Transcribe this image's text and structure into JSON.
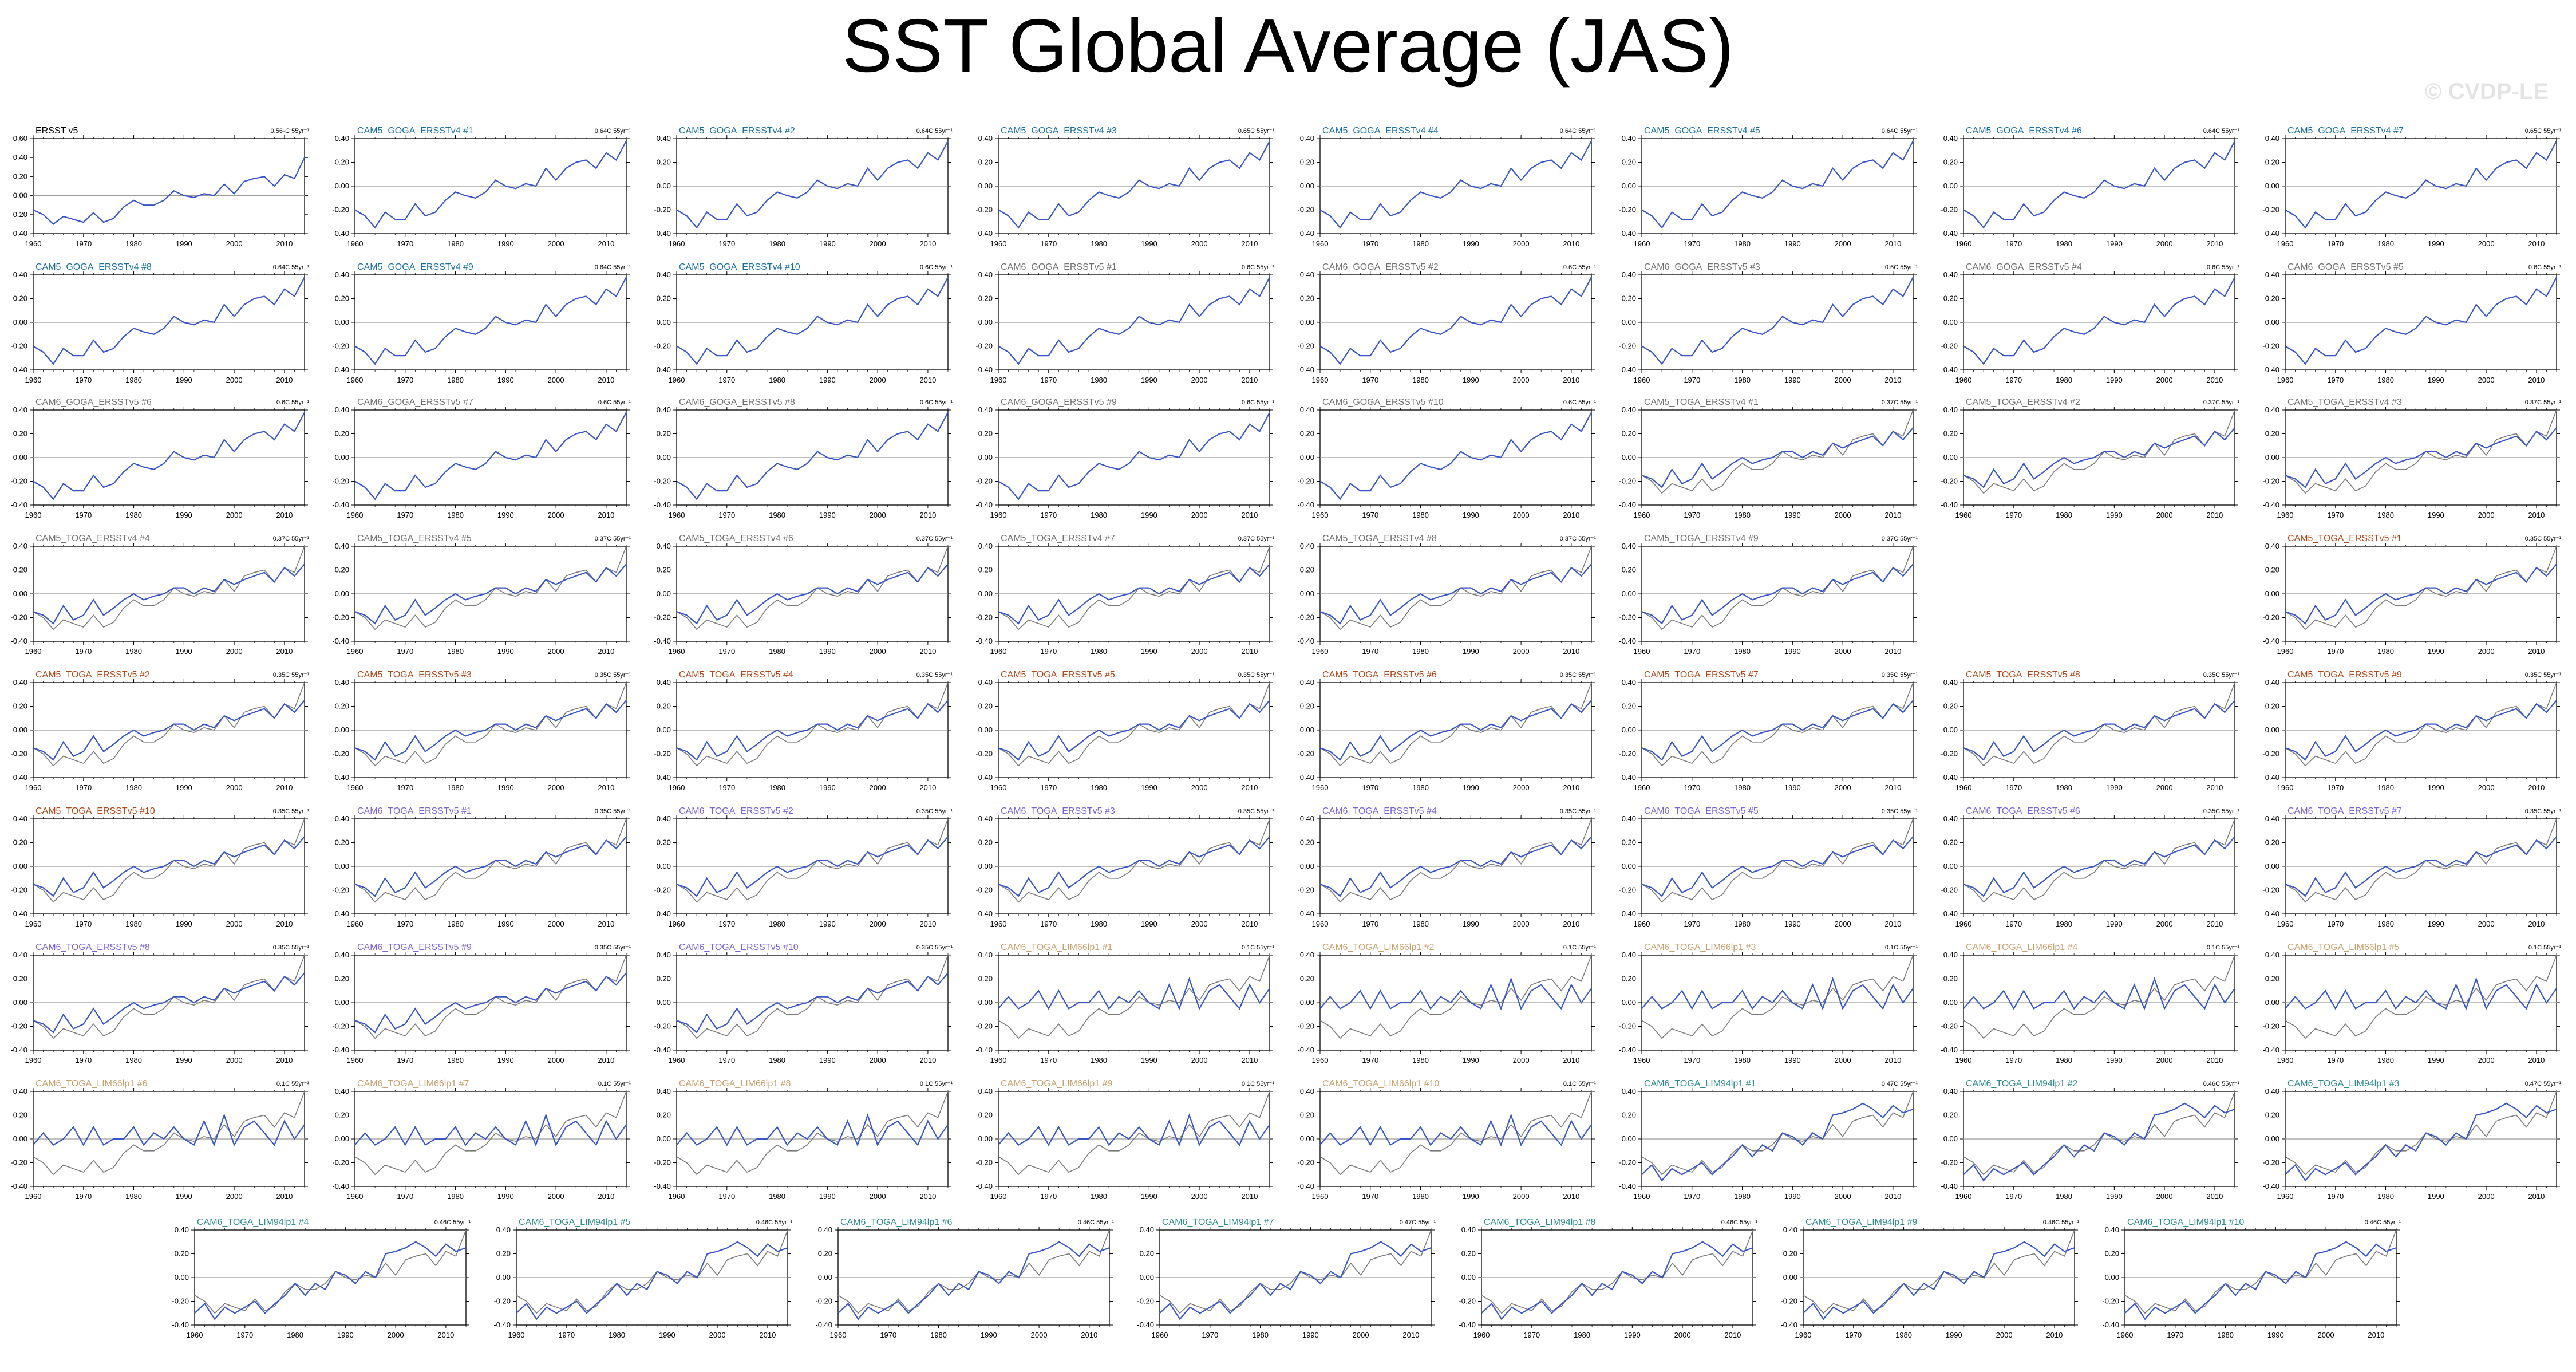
{
  "title": "SST Global Average (JAS)",
  "watermark": "© CVDP-LE",
  "colors": {
    "model_line": "#3a55c8",
    "obs_line": "#7a7a7a",
    "zero_line": "#9a9a9a",
    "obs_title": "#000000",
    "cam5_goga": "#1a6fa0",
    "cam6_goga": "#707070",
    "cam5_toga": "#b0471a",
    "cam6_toga": "#7b63d6",
    "lim66": "#c8a070",
    "lim94": "#2e8b8b"
  },
  "panels": [
    {
      "title": "ERSST v5",
      "trend": "0.56ᵒC 55yr⁻¹",
      "group": "obs"
    },
    {
      "title": "CAM5_GOGA_ERSSTv4 #1",
      "trend": "0.64C 55yr⁻¹",
      "group": "cam5_goga"
    },
    {
      "title": "CAM5_GOGA_ERSSTv4 #2",
      "trend": "0.64C 55yr⁻¹",
      "group": "cam5_goga"
    },
    {
      "title": "CAM5_GOGA_ERSSTv4 #3",
      "trend": "0.65C 55yr⁻¹",
      "group": "cam5_goga"
    },
    {
      "title": "CAM5_GOGA_ERSSTv4 #4",
      "trend": "0.64C 55yr⁻¹",
      "group": "cam5_goga"
    },
    {
      "title": "CAM5_GOGA_ERSSTv4 #5",
      "trend": "0.64C 55yr⁻¹",
      "group": "cam5_goga"
    },
    {
      "title": "CAM5_GOGA_ERSSTv4 #6",
      "trend": "0.64C 55yr⁻¹",
      "group": "cam5_goga"
    },
    {
      "title": "CAM5_GOGA_ERSSTv4 #7",
      "trend": "0.65C 55yr⁻¹",
      "group": "cam5_goga"
    },
    {
      "title": "CAM5_GOGA_ERSSTv4 #8",
      "trend": "0.64C 55yr⁻¹",
      "group": "cam5_goga"
    },
    {
      "title": "CAM5_GOGA_ERSSTv4 #9",
      "trend": "0.64C 55yr⁻¹",
      "group": "cam5_goga"
    },
    {
      "title": "CAM5_GOGA_ERSSTv4 #10",
      "trend": "0.6C 55yr⁻¹",
      "group": "cam5_goga"
    },
    {
      "title": "CAM6_GOGA_ERSSTv5 #1",
      "trend": "0.6C 55yr⁻¹",
      "group": "cam6_goga"
    },
    {
      "title": "CAM6_GOGA_ERSSTv5 #2",
      "trend": "0.6C 55yr⁻¹",
      "group": "cam6_goga"
    },
    {
      "title": "CAM6_GOGA_ERSSTv5 #3",
      "trend": "0.6C 55yr⁻¹",
      "group": "cam6_goga"
    },
    {
      "title": "CAM6_GOGA_ERSSTv5 #4",
      "trend": "0.6C 55yr⁻¹",
      "group": "cam6_goga"
    },
    {
      "title": "CAM6_GOGA_ERSSTv5 #5",
      "trend": "0.6C 55yr⁻¹",
      "group": "cam6_goga"
    },
    {
      "title": "CAM6_GOGA_ERSSTv5 #6",
      "trend": "0.6C 55yr⁻¹",
      "group": "cam6_goga"
    },
    {
      "title": "CAM6_GOGA_ERSSTv5 #7",
      "trend": "0.6C 55yr⁻¹",
      "group": "cam6_goga"
    },
    {
      "title": "CAM6_GOGA_ERSSTv5 #8",
      "trend": "0.6C 55yr⁻¹",
      "group": "cam6_goga"
    },
    {
      "title": "CAM6_GOGA_ERSSTv5 #9",
      "trend": "0.6C 55yr⁻¹",
      "group": "cam6_goga"
    },
    {
      "title": "CAM6_GOGA_ERSSTv5 #10",
      "trend": "0.6C 55yr⁻¹",
      "group": "cam6_goga"
    },
    {
      "title": "CAM5_TOGA_ERSSTv4 #1",
      "trend": "0.37C 55yr⁻¹",
      "group": "cam6_goga"
    },
    {
      "title": "CAM5_TOGA_ERSSTv4 #2",
      "trend": "0.37C 55yr⁻¹",
      "group": "cam6_goga"
    },
    {
      "title": "CAM5_TOGA_ERSSTv4 #3",
      "trend": "0.37C 55yr⁻¹",
      "group": "cam6_goga"
    },
    {
      "title": "CAM5_TOGA_ERSSTv4 #4",
      "trend": "0.37C 55yr⁻¹",
      "group": "cam6_goga"
    },
    {
      "title": "CAM5_TOGA_ERSSTv4 #5",
      "trend": "0.37C 55yr⁻¹",
      "group": "cam6_goga"
    },
    {
      "title": "CAM5_TOGA_ERSSTv4 #6",
      "trend": "0.37C 55yr⁻¹",
      "group": "cam6_goga"
    },
    {
      "title": "CAM5_TOGA_ERSSTv4 #7",
      "trend": "0.37C 55yr⁻¹",
      "group": "cam6_goga"
    },
    {
      "title": "CAM5_TOGA_ERSSTv4 #8",
      "trend": "0.37C 55yr⁻¹",
      "group": "cam6_goga"
    },
    {
      "title": "CAM5_TOGA_ERSSTv4 #9",
      "trend": "0.37C 55yr⁻¹",
      "group": "cam6_goga"
    },
    {
      "title": "CAM5_TOGA_ERSSTv5 #1",
      "trend": "0.35C 55yr⁻¹",
      "group": "cam5_toga"
    },
    {
      "title": "CAM5_TOGA_ERSSTv5 #2",
      "trend": "0.35C 55yr⁻¹",
      "group": "cam5_toga"
    },
    {
      "title": "CAM5_TOGA_ERSSTv5 #3",
      "trend": "0.35C 55yr⁻¹",
      "group": "cam5_toga"
    },
    {
      "title": "CAM5_TOGA_ERSSTv5 #4",
      "trend": "0.35C 55yr⁻¹",
      "group": "cam5_toga"
    },
    {
      "title": "CAM5_TOGA_ERSSTv5 #5",
      "trend": "0.35C 55yr⁻¹",
      "group": "cam5_toga"
    },
    {
      "title": "CAM5_TOGA_ERSSTv5 #6",
      "trend": "0.35C 55yr⁻¹",
      "group": "cam5_toga"
    },
    {
      "title": "CAM5_TOGA_ERSSTv5 #7",
      "trend": "0.35C 55yr⁻¹",
      "group": "cam5_toga"
    },
    {
      "title": "CAM5_TOGA_ERSSTv5 #8",
      "trend": "0.35C 55yr⁻¹",
      "group": "cam5_toga"
    },
    {
      "title": "CAM5_TOGA_ERSSTv5 #9",
      "trend": "0.35C 55yr⁻¹",
      "group": "cam5_toga"
    },
    {
      "title": "CAM5_TOGA_ERSSTv5 #10",
      "trend": "0.35C 55yr⁻¹",
      "group": "cam5_toga"
    },
    {
      "title": "CAM6_TOGA_ERSSTv5 #1",
      "trend": "0.35C 55yr⁻¹",
      "group": "cam6_toga"
    },
    {
      "title": "CAM6_TOGA_ERSSTv5 #2",
      "trend": "0.35C 55yr⁻¹",
      "group": "cam6_toga"
    },
    {
      "title": "CAM6_TOGA_ERSSTv5 #3",
      "trend": "0.35C 55yr⁻¹",
      "group": "cam6_toga"
    },
    {
      "title": "CAM6_TOGA_ERSSTv5 #4",
      "trend": "0.35C 55yr⁻¹",
      "group": "cam6_toga"
    },
    {
      "title": "CAM6_TOGA_ERSSTv5 #5",
      "trend": "0.35C 55yr⁻¹",
      "group": "cam6_toga"
    },
    {
      "title": "CAM6_TOGA_ERSSTv5 #6",
      "trend": "0.35C 55yr⁻¹",
      "group": "cam6_toga"
    },
    {
      "title": "CAM6_TOGA_ERSSTv5 #7",
      "trend": "0.35C 55yr⁻¹",
      "group": "cam6_toga"
    },
    {
      "title": "CAM6_TOGA_ERSSTv5 #8",
      "trend": "0.35C 55yr⁻¹",
      "group": "cam6_toga"
    },
    {
      "title": "CAM6_TOGA_ERSSTv5 #9",
      "trend": "0.35C 55yr⁻¹",
      "group": "cam6_toga"
    },
    {
      "title": "CAM6_TOGA_ERSSTv5 #10",
      "trend": "0.35C 55yr⁻¹",
      "group": "cam6_toga"
    },
    {
      "title": "CAM6_TOGA_LIM66lp1 #1",
      "trend": "0.1C 55yr⁻¹",
      "group": "lim66"
    },
    {
      "title": "CAM6_TOGA_LIM66lp1 #2",
      "trend": "0.1C 55yr⁻¹",
      "group": "lim66"
    },
    {
      "title": "CAM6_TOGA_LIM66lp1 #3",
      "trend": "0.1C 55yr⁻¹",
      "group": "lim66"
    },
    {
      "title": "CAM6_TOGA_LIM66lp1 #4",
      "trend": "0.1C 55yr⁻¹",
      "group": "lim66"
    },
    {
      "title": "CAM6_TOGA_LIM66lp1 #5",
      "trend": "0.1C 55yr⁻¹",
      "group": "lim66"
    },
    {
      "title": "CAM6_TOGA_LIM66lp1 #6",
      "trend": "0.1C 55yr⁻¹",
      "group": "lim66"
    },
    {
      "title": "CAM6_TOGA_LIM66lp1 #7",
      "trend": "0.1C 55yr⁻¹",
      "group": "lim66"
    },
    {
      "title": "CAM6_TOGA_LIM66lp1 #8",
      "trend": "0.1C 55yr⁻¹",
      "group": "lim66"
    },
    {
      "title": "CAM6_TOGA_LIM66lp1 #9",
      "trend": "0.1C 55yr⁻¹",
      "group": "lim66"
    },
    {
      "title": "CAM6_TOGA_LIM66lp1 #10",
      "trend": "0.1C 55yr⁻¹",
      "group": "lim66"
    },
    {
      "title": "CAM6_TOGA_LIM94lp1 #1",
      "trend": "0.47C 55yr⁻¹",
      "group": "lim94"
    },
    {
      "title": "CAM6_TOGA_LIM94lp1 #2",
      "trend": "0.46C 55yr⁻¹",
      "group": "lim94"
    },
    {
      "title": "CAM6_TOGA_LIM94lp1 #3",
      "trend": "0.47C 55yr⁻¹",
      "group": "lim94"
    },
    {
      "title": "CAM6_TOGA_LIM94lp1 #4",
      "trend": "0.46C 55yr⁻¹",
      "group": "lim94"
    },
    {
      "title": "CAM6_TOGA_LIM94lp1 #5",
      "trend": "0.46C 55yr⁻¹",
      "group": "lim94"
    },
    {
      "title": "CAM6_TOGA_LIM94lp1 #6",
      "trend": "0.46C 55yr⁻¹",
      "group": "lim94"
    },
    {
      "title": "CAM6_TOGA_LIM94lp1 #7",
      "trend": "0.47C 55yr⁻¹",
      "group": "lim94"
    },
    {
      "title": "CAM6_TOGA_LIM94lp1 #8",
      "trend": "0.46C 55yr⁻¹",
      "group": "lim94"
    },
    {
      "title": "CAM6_TOGA_LIM94lp1 #9",
      "trend": "0.46C 55yr⁻¹",
      "group": "lim94"
    },
    {
      "title": "CAM6_TOGA_LIM94lp1 #10",
      "trend": "0.46C 55yr⁻¹",
      "group": "lim94"
    }
  ],
  "chart_data": {
    "type": "line",
    "title": "SST Global Average (JAS)",
    "x_ticks": [
      1960,
      1970,
      1980,
      1990,
      2000,
      2010
    ],
    "xlim": [
      1960,
      2014
    ],
    "y_ticks": [
      "0.40",
      "0.20",
      "0.00",
      "-0.20",
      "-0.40"
    ],
    "obs_y_ticks": [
      "0.60",
      "0.40",
      "0.20",
      "0.00",
      "-0.20",
      "-0.40"
    ],
    "ylim": [
      -0.4,
      0.4
    ],
    "obs_ylim": [
      -0.4,
      0.6
    ],
    "zero_line": true,
    "x": [
      1960,
      1962,
      1964,
      1966,
      1968,
      1970,
      1972,
      1974,
      1976,
      1978,
      1980,
      1982,
      1984,
      1986,
      1988,
      1990,
      1992,
      1994,
      1996,
      1998,
      2000,
      2002,
      2004,
      2006,
      2008,
      2010,
      2012,
      2014
    ],
    "observed": [
      -0.15,
      -0.2,
      -0.3,
      -0.22,
      -0.25,
      -0.28,
      -0.18,
      -0.28,
      -0.24,
      -0.12,
      -0.05,
      -0.1,
      -0.1,
      -0.05,
      0.05,
      0.0,
      -0.02,
      0.02,
      0.0,
      0.12,
      0.02,
      0.15,
      0.18,
      0.2,
      0.1,
      0.22,
      0.18,
      0.4
    ],
    "goga": [
      -0.2,
      -0.25,
      -0.35,
      -0.22,
      -0.28,
      -0.28,
      -0.15,
      -0.25,
      -0.22,
      -0.12,
      -0.05,
      -0.08,
      -0.1,
      -0.05,
      0.05,
      0.0,
      -0.02,
      0.02,
      0.0,
      0.15,
      0.05,
      0.15,
      0.2,
      0.22,
      0.15,
      0.28,
      0.22,
      0.38
    ],
    "toga": [
      -0.15,
      -0.18,
      -0.25,
      -0.1,
      -0.22,
      -0.18,
      -0.05,
      -0.18,
      -0.12,
      -0.05,
      0.0,
      -0.05,
      -0.02,
      0.0,
      0.05,
      0.05,
      0.0,
      0.05,
      0.02,
      0.12,
      0.08,
      0.12,
      0.15,
      0.18,
      0.1,
      0.22,
      0.15,
      0.25
    ],
    "lim66": [
      -0.05,
      0.05,
      -0.05,
      0.0,
      0.1,
      -0.05,
      0.1,
      -0.05,
      0.0,
      0.0,
      0.1,
      -0.05,
      0.05,
      0.0,
      0.1,
      0.0,
      -0.05,
      0.15,
      -0.05,
      0.2,
      -0.05,
      0.1,
      0.15,
      0.05,
      -0.05,
      0.15,
      0.0,
      0.12
    ],
    "lim94": [
      -0.3,
      -0.22,
      -0.35,
      -0.25,
      -0.3,
      -0.25,
      -0.2,
      -0.3,
      -0.22,
      -0.15,
      -0.05,
      -0.15,
      -0.05,
      -0.1,
      0.05,
      0.02,
      -0.05,
      0.05,
      0.0,
      0.2,
      0.22,
      0.25,
      0.3,
      0.25,
      0.18,
      0.28,
      0.22,
      0.25
    ]
  }
}
